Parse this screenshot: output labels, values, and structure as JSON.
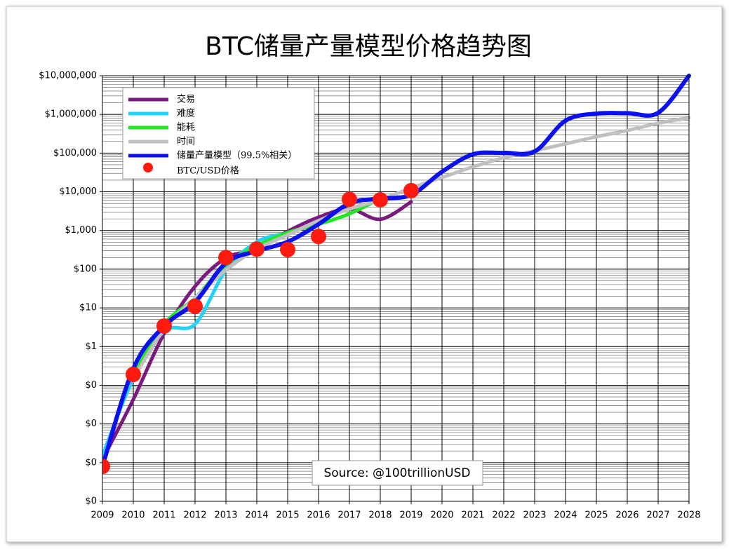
{
  "chart_data": {
    "type": "line",
    "title": "BTC储量产量模型价格趋势图",
    "annotation": "Source: @100trillionUSD",
    "y_scale": "log",
    "grid": true,
    "minor_grid": true,
    "legend": "upper left",
    "xlim": [
      2009,
      2028
    ],
    "xticks": [
      2009,
      2010,
      2011,
      2012,
      2013,
      2014,
      2015,
      2016,
      2017,
      2018,
      2019,
      2020,
      2021,
      2022,
      2023,
      2024,
      2025,
      2026,
      2027,
      2028
    ],
    "ylim": [
      0.0001,
      10000000
    ],
    "yticks": [
      {
        "value": 0.0001,
        "label": "$0"
      },
      {
        "value": 0.001,
        "label": "$0"
      },
      {
        "value": 0.01,
        "label": "$0"
      },
      {
        "value": 0.1,
        "label": "$0"
      },
      {
        "value": 1,
        "label": "$1"
      },
      {
        "value": 10,
        "label": "$10"
      },
      {
        "value": 100,
        "label": "$100"
      },
      {
        "value": 1000,
        "label": "$1,000"
      },
      {
        "value": 10000,
        "label": "$10,000"
      },
      {
        "value": 100000,
        "label": "$100,000"
      },
      {
        "value": 1000000,
        "label": "$1,000,000"
      },
      {
        "value": 10000000,
        "label": "$10,000,000"
      }
    ],
    "series": [
      {
        "name": "交易",
        "color": "#7b1a7e",
        "x": [
          2009,
          2010,
          2011,
          2012,
          2013,
          2014,
          2015,
          2016,
          2017,
          2018,
          2019
        ],
        "values": [
          0.0012,
          0.043,
          2.2,
          36,
          195,
          330,
          950,
          2200,
          3600,
          1950,
          5500
        ]
      },
      {
        "name": "难度",
        "color": "#22d3f5",
        "x": [
          2009,
          2010,
          2011,
          2012,
          2013,
          2014,
          2015
        ],
        "values": [
          0.0015,
          0.15,
          2.5,
          3.8,
          95,
          510,
          850
        ]
      },
      {
        "name": "能耗",
        "color": "#22e822",
        "x": [
          2010,
          2011,
          2012,
          2013,
          2014,
          2015,
          2016,
          2017,
          2018
        ],
        "values": [
          0.18,
          3.8,
          18,
          130,
          400,
          880,
          1450,
          2700,
          6700
        ]
      },
      {
        "name": "时间",
        "color": "#c0c0c0",
        "x": [
          2010,
          2011,
          2012,
          2013,
          2014,
          2015,
          2016,
          2017,
          2018,
          2019,
          2020,
          2021,
          2022,
          2023,
          2024,
          2025,
          2026,
          2027,
          2028
        ],
        "values": [
          0.15,
          2.8,
          18,
          95,
          330,
          770,
          1800,
          3600,
          6200,
          12500,
          23500,
          44000,
          76000,
          115000,
          174000,
          265000,
          385000,
          590000,
          820000
        ]
      },
      {
        "name": "储量产量模型（99.5%相关）",
        "color": "#0a10ee",
        "x": [
          2009,
          2010,
          2011,
          2012,
          2013,
          2014,
          2015,
          2016,
          2017,
          2018,
          2019,
          2020,
          2021,
          2022,
          2023,
          2024,
          2025,
          2026,
          2027,
          2028
        ],
        "values": [
          0.0008,
          0.27,
          3.4,
          14,
          145,
          295,
          510,
          1450,
          5000,
          6700,
          8300,
          33000,
          93000,
          102000,
          110000,
          690000,
          1050000,
          1080000,
          1100000,
          10000000
        ]
      },
      {
        "name": "BTC/USD价格",
        "color": "#ff1a10",
        "marker": true,
        "x": [
          2009,
          2010,
          2011,
          2012,
          2013,
          2014,
          2015,
          2016,
          2017,
          2018,
          2019
        ],
        "values": [
          0.0008,
          0.19,
          3.4,
          11,
          200,
          330,
          320,
          700,
          6400,
          6200,
          10700
        ]
      }
    ]
  }
}
